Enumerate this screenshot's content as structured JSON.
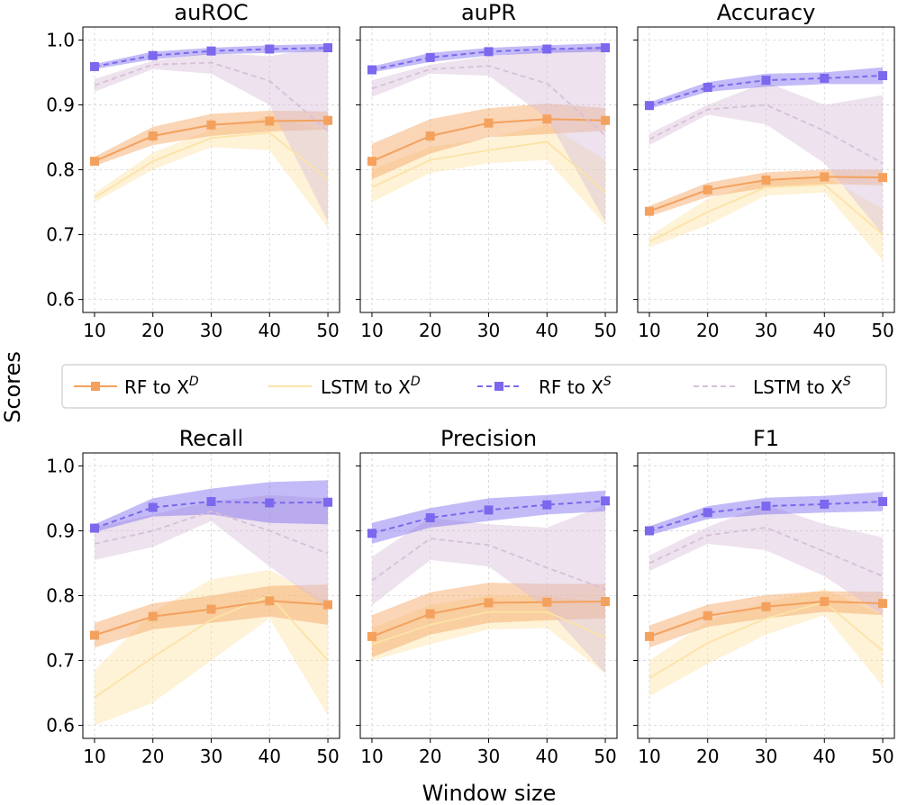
{
  "figure": {
    "ylabel": "Scores",
    "xlabel": "Window size",
    "legend": [
      {
        "key": "rf_d",
        "label": "RF to X",
        "sup": "D",
        "color": "#f4a15d",
        "dash": "solid",
        "marker": "square"
      },
      {
        "key": "lstm_d",
        "label": "LSTM to X",
        "sup": "D",
        "color": "#fce3a6",
        "dash": "solid",
        "marker": "none"
      },
      {
        "key": "rf_s",
        "label": "RF to X",
        "sup": "S",
        "color": "#7b68ee",
        "dash": "dashed",
        "marker": "square"
      },
      {
        "key": "lstm_s",
        "label": "LSTM to X",
        "sup": "S",
        "color": "#d8bfd8",
        "dash": "dashed",
        "marker": "none"
      }
    ],
    "colors": {
      "rf_d": "#f4a15d",
      "lstm_d": "#fce3a6",
      "rf_s": "#7b68ee",
      "lstm_s": "#d8bfd8"
    }
  },
  "chart_data": [
    {
      "type": "line",
      "title": "auROC",
      "x": [
        10,
        20,
        30,
        40,
        50
      ],
      "ylim": [
        0.58,
        1.02
      ],
      "yticks": [
        0.6,
        0.7,
        0.8,
        0.9,
        1.0
      ],
      "xticks": [
        10,
        20,
        30,
        40,
        50
      ],
      "grid": true,
      "series": [
        {
          "name": "RF to X^D",
          "key": "rf_d",
          "values": [
            0.813,
            0.852,
            0.869,
            0.875,
            0.876
          ],
          "lower": [
            0.806,
            0.838,
            0.852,
            0.859,
            0.862
          ],
          "upper": [
            0.82,
            0.866,
            0.886,
            0.891,
            0.89
          ]
        },
        {
          "name": "LSTM to X^D",
          "key": "lstm_d",
          "values": [
            0.757,
            0.813,
            0.849,
            0.857,
            0.785
          ],
          "lower": [
            0.75,
            0.8,
            0.835,
            0.83,
            0.71
          ],
          "upper": [
            0.764,
            0.826,
            0.862,
            0.882,
            0.86
          ]
        },
        {
          "name": "RF to X^S",
          "key": "rf_s",
          "values": [
            0.959,
            0.976,
            0.983,
            0.986,
            0.988
          ],
          "lower": [
            0.955,
            0.97,
            0.978,
            0.98,
            0.982
          ],
          "upper": [
            0.963,
            0.982,
            0.988,
            0.992,
            0.994
          ]
        },
        {
          "name": "LSTM to X^S",
          "key": "lstm_s",
          "values": [
            0.93,
            0.962,
            0.965,
            0.937,
            0.86
          ],
          "lower": [
            0.92,
            0.955,
            0.948,
            0.9,
            0.72
          ],
          "upper": [
            0.94,
            0.968,
            0.98,
            0.975,
            0.99
          ]
        }
      ]
    },
    {
      "type": "line",
      "title": "auPR",
      "x": [
        10,
        20,
        30,
        40,
        50
      ],
      "ylim": [
        0.58,
        1.02
      ],
      "yticks": [
        0.6,
        0.7,
        0.8,
        0.9,
        1.0
      ],
      "xticks": [
        10,
        20,
        30,
        40,
        50
      ],
      "grid": true,
      "series": [
        {
          "name": "RF to X^D",
          "key": "rf_d",
          "values": [
            0.813,
            0.852,
            0.872,
            0.878,
            0.876
          ],
          "lower": [
            0.785,
            0.825,
            0.85,
            0.855,
            0.86
          ],
          "upper": [
            0.84,
            0.878,
            0.895,
            0.902,
            0.895
          ]
        },
        {
          "name": "LSTM to X^D",
          "key": "lstm_d",
          "values": [
            0.773,
            0.815,
            0.83,
            0.843,
            0.765
          ],
          "lower": [
            0.75,
            0.795,
            0.81,
            0.815,
            0.715
          ],
          "upper": [
            0.8,
            0.835,
            0.848,
            0.87,
            0.815
          ]
        },
        {
          "name": "RF to X^S",
          "key": "rf_s",
          "values": [
            0.954,
            0.973,
            0.982,
            0.986,
            0.988
          ],
          "lower": [
            0.95,
            0.966,
            0.976,
            0.98,
            0.982
          ],
          "upper": [
            0.959,
            0.98,
            0.988,
            0.992,
            0.995
          ]
        },
        {
          "name": "LSTM to X^S",
          "key": "lstm_s",
          "values": [
            0.925,
            0.955,
            0.96,
            0.933,
            0.853
          ],
          "lower": [
            0.912,
            0.948,
            0.945,
            0.88,
            0.72
          ],
          "upper": [
            0.938,
            0.962,
            0.975,
            0.985,
            0.99
          ]
        }
      ]
    },
    {
      "type": "line",
      "title": "Accuracy",
      "x": [
        10,
        20,
        30,
        40,
        50
      ],
      "ylim": [
        0.58,
        1.02
      ],
      "yticks": [
        0.6,
        0.7,
        0.8,
        0.9,
        1.0
      ],
      "xticks": [
        10,
        20,
        30,
        40,
        50
      ],
      "grid": true,
      "series": [
        {
          "name": "RF to X^D",
          "key": "rf_d",
          "values": [
            0.736,
            0.769,
            0.784,
            0.789,
            0.788
          ],
          "lower": [
            0.728,
            0.758,
            0.772,
            0.778,
            0.776
          ],
          "upper": [
            0.744,
            0.78,
            0.796,
            0.8,
            0.8
          ]
        },
        {
          "name": "LSTM to X^D",
          "key": "lstm_d",
          "values": [
            0.689,
            0.735,
            0.773,
            0.777,
            0.7
          ],
          "lower": [
            0.68,
            0.715,
            0.76,
            0.765,
            0.66
          ],
          "upper": [
            0.698,
            0.755,
            0.785,
            0.79,
            0.74
          ]
        },
        {
          "name": "RF to X^S",
          "key": "rf_s",
          "values": [
            0.899,
            0.927,
            0.938,
            0.941,
            0.945
          ],
          "lower": [
            0.894,
            0.92,
            0.928,
            0.932,
            0.932
          ],
          "upper": [
            0.904,
            0.935,
            0.948,
            0.95,
            0.958
          ]
        },
        {
          "name": "LSTM to X^S",
          "key": "lstm_s",
          "values": [
            0.847,
            0.893,
            0.9,
            0.86,
            0.81
          ],
          "lower": [
            0.838,
            0.885,
            0.87,
            0.81,
            0.7
          ],
          "upper": [
            0.856,
            0.9,
            0.935,
            0.9,
            0.915
          ]
        }
      ]
    },
    {
      "type": "line",
      "title": "Recall",
      "x": [
        10,
        20,
        30,
        40,
        50
      ],
      "ylim": [
        0.58,
        1.02
      ],
      "yticks": [
        0.6,
        0.7,
        0.8,
        0.9,
        1.0
      ],
      "xticks": [
        10,
        20,
        30,
        40,
        50
      ],
      "grid": true,
      "series": [
        {
          "name": "RF to X^D",
          "key": "rf_d",
          "values": [
            0.739,
            0.768,
            0.779,
            0.792,
            0.786
          ],
          "lower": [
            0.72,
            0.748,
            0.758,
            0.768,
            0.755
          ],
          "upper": [
            0.758,
            0.788,
            0.8,
            0.815,
            0.817
          ]
        },
        {
          "name": "LSTM to X^D",
          "key": "lstm_d",
          "values": [
            0.643,
            0.705,
            0.763,
            0.8,
            0.7
          ],
          "lower": [
            0.6,
            0.635,
            0.7,
            0.765,
            0.615
          ],
          "upper": [
            0.685,
            0.775,
            0.825,
            0.84,
            0.79
          ]
        },
        {
          "name": "RF to X^S",
          "key": "rf_s",
          "values": [
            0.904,
            0.936,
            0.945,
            0.943,
            0.944
          ],
          "lower": [
            0.898,
            0.922,
            0.925,
            0.912,
            0.91
          ],
          "upper": [
            0.91,
            0.95,
            0.965,
            0.975,
            0.978
          ]
        },
        {
          "name": "LSTM to X^S",
          "key": "lstm_s",
          "values": [
            0.88,
            0.9,
            0.93,
            0.9,
            0.865
          ],
          "lower": [
            0.855,
            0.875,
            0.915,
            0.845,
            0.78
          ],
          "upper": [
            0.905,
            0.925,
            0.945,
            0.955,
            0.95
          ]
        }
      ]
    },
    {
      "type": "line",
      "title": "Precision",
      "x": [
        10,
        20,
        30,
        40,
        50
      ],
      "ylim": [
        0.58,
        1.02
      ],
      "yticks": [
        0.6,
        0.7,
        0.8,
        0.9,
        1.0
      ],
      "xticks": [
        10,
        20,
        30,
        40,
        50
      ],
      "grid": true,
      "series": [
        {
          "name": "RF to X^D",
          "key": "rf_d",
          "values": [
            0.737,
            0.772,
            0.789,
            0.79,
            0.791
          ],
          "lower": [
            0.705,
            0.74,
            0.758,
            0.762,
            0.765
          ],
          "upper": [
            0.77,
            0.805,
            0.82,
            0.818,
            0.818
          ]
        },
        {
          "name": "LSTM to X^D",
          "key": "lstm_d",
          "values": [
            0.725,
            0.755,
            0.775,
            0.775,
            0.735
          ],
          "lower": [
            0.7,
            0.725,
            0.748,
            0.75,
            0.68
          ],
          "upper": [
            0.75,
            0.785,
            0.8,
            0.8,
            0.79
          ]
        },
        {
          "name": "RF to X^S",
          "key": "rf_s",
          "values": [
            0.896,
            0.92,
            0.932,
            0.94,
            0.946
          ],
          "lower": [
            0.88,
            0.905,
            0.915,
            0.925,
            0.93
          ],
          "upper": [
            0.912,
            0.935,
            0.95,
            0.955,
            0.962
          ]
        },
        {
          "name": "LSTM to X^S",
          "key": "lstm_s",
          "values": [
            0.823,
            0.888,
            0.878,
            0.843,
            0.81
          ],
          "lower": [
            0.785,
            0.855,
            0.845,
            0.78,
            0.68
          ],
          "upper": [
            0.86,
            0.92,
            0.91,
            0.905,
            0.94
          ]
        }
      ]
    },
    {
      "type": "line",
      "title": "F1",
      "x": [
        10,
        20,
        30,
        40,
        50
      ],
      "ylim": [
        0.58,
        1.02
      ],
      "yticks": [
        0.6,
        0.7,
        0.8,
        0.9,
        1.0
      ],
      "xticks": [
        10,
        20,
        30,
        40,
        50
      ],
      "grid": true,
      "series": [
        {
          "name": "RF to X^D",
          "key": "rf_d",
          "values": [
            0.737,
            0.769,
            0.783,
            0.791,
            0.788
          ],
          "lower": [
            0.72,
            0.752,
            0.765,
            0.775,
            0.77
          ],
          "upper": [
            0.754,
            0.786,
            0.801,
            0.807,
            0.806
          ]
        },
        {
          "name": "LSTM to X^D",
          "key": "lstm_d",
          "values": [
            0.673,
            0.727,
            0.765,
            0.79,
            0.715
          ],
          "lower": [
            0.645,
            0.695,
            0.74,
            0.77,
            0.66
          ],
          "upper": [
            0.7,
            0.76,
            0.79,
            0.81,
            0.77
          ]
        },
        {
          "name": "RF to X^S",
          "key": "rf_s",
          "values": [
            0.9,
            0.928,
            0.938,
            0.941,
            0.945
          ],
          "lower": [
            0.893,
            0.918,
            0.925,
            0.928,
            0.93
          ],
          "upper": [
            0.907,
            0.938,
            0.951,
            0.954,
            0.96
          ]
        },
        {
          "name": "LSTM to X^S",
          "key": "lstm_s",
          "values": [
            0.85,
            0.893,
            0.905,
            0.868,
            0.83
          ],
          "lower": [
            0.838,
            0.88,
            0.87,
            0.83,
            0.77
          ],
          "upper": [
            0.862,
            0.906,
            0.94,
            0.91,
            0.89
          ]
        }
      ]
    }
  ]
}
